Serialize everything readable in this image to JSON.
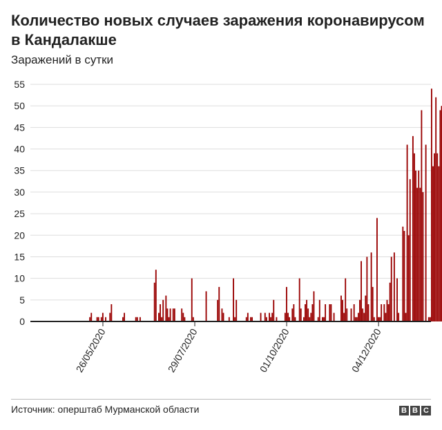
{
  "header": {
    "title": "Количество новых случаев заражения коронавирусом в Кандалакше",
    "subtitle": "Заражений в сутки"
  },
  "footer": {
    "source": "Источник: оперштаб Мурманской области",
    "logo": [
      "B",
      "B",
      "C"
    ]
  },
  "colors": {
    "bar": "#990000",
    "grid": "#dddddd",
    "axis": "#222222",
    "text": "#222222"
  },
  "chart_data": {
    "type": "bar",
    "title": "Количество новых случаев заражения коронавирусом в Кандалакше",
    "subtitle": "Заражений в сутки",
    "xlabel": "",
    "ylabel": "",
    "ylim": [
      0,
      55
    ],
    "yticks": [
      0,
      5,
      10,
      15,
      20,
      25,
      30,
      35,
      40,
      45,
      50,
      55
    ],
    "xticks": [
      "26/05/2020",
      "29/07/2020",
      "01/10/2020",
      "04/12/2020"
    ],
    "x_start": "2020-04-06",
    "x_end": "2021-01-10",
    "grid": true,
    "values": [
      0,
      0,
      0,
      0,
      0,
      0,
      0,
      0,
      0,
      0,
      0,
      0,
      0,
      0,
      0,
      0,
      0,
      0,
      0,
      0,
      0,
      0,
      0,
      0,
      0,
      0,
      0,
      0,
      0,
      0,
      0,
      0,
      0,
      0,
      0,
      0,
      0,
      0,
      0,
      0,
      0,
      1,
      2,
      0,
      0,
      0,
      1,
      1,
      0,
      1,
      2,
      0,
      1,
      0,
      0,
      2,
      4,
      0,
      0,
      0,
      0,
      0,
      0,
      0,
      1,
      2,
      0,
      0,
      0,
      0,
      0,
      0,
      0,
      1,
      1,
      0,
      1,
      0,
      0,
      0,
      0,
      0,
      0,
      0,
      0,
      0,
      9,
      12,
      0,
      2,
      4,
      1,
      5,
      0,
      6,
      3,
      1,
      3,
      0,
      3,
      3,
      0,
      0,
      0,
      0,
      3,
      2,
      1,
      0,
      0,
      0,
      0,
      10,
      1,
      0,
      0,
      0,
      0,
      0,
      0,
      0,
      0,
      7,
      0,
      0,
      0,
      0,
      0,
      0,
      0,
      5,
      8,
      0,
      3,
      2,
      0,
      0,
      0,
      1,
      0,
      0,
      10,
      1,
      5,
      0,
      0,
      0,
      0,
      0,
      0,
      1,
      2,
      0,
      1,
      1,
      0,
      0,
      0,
      0,
      0,
      2,
      0,
      0,
      2,
      1,
      0,
      2,
      1,
      2,
      5,
      0,
      1,
      0,
      0,
      0,
      0,
      0,
      2,
      8,
      2,
      1,
      0,
      3,
      4,
      1,
      0,
      0,
      10,
      3,
      0,
      1,
      4,
      5,
      3,
      1,
      2,
      4,
      7,
      0,
      0,
      1,
      5,
      0,
      1,
      1,
      4,
      0,
      0,
      4,
      4,
      0,
      2,
      0,
      0,
      0,
      0,
      6,
      5,
      2,
      10,
      3,
      0,
      0,
      3,
      0,
      4,
      1,
      1,
      2,
      5,
      14,
      3,
      2,
      6,
      15,
      4,
      0,
      16,
      8,
      1,
      0,
      24,
      1,
      1,
      4,
      0,
      4,
      2,
      5,
      4,
      9,
      15,
      0,
      16,
      0,
      10,
      2,
      0,
      0,
      22,
      21,
      2,
      41,
      20,
      33,
      0,
      43,
      39,
      35,
      31,
      35,
      31,
      49,
      30,
      0,
      41,
      0,
      1,
      1,
      54,
      36,
      39,
      52,
      39,
      36,
      49,
      50,
      41,
      46,
      48,
      35,
      41,
      0,
      50,
      47,
      42,
      26,
      21,
      15,
      17,
      33,
      38,
      42,
      35,
      33,
      41,
      50,
      37,
      43,
      47,
      53,
      33,
      31,
      0,
      28,
      37,
      42,
      0,
      34,
      0,
      20,
      34
    ]
  }
}
